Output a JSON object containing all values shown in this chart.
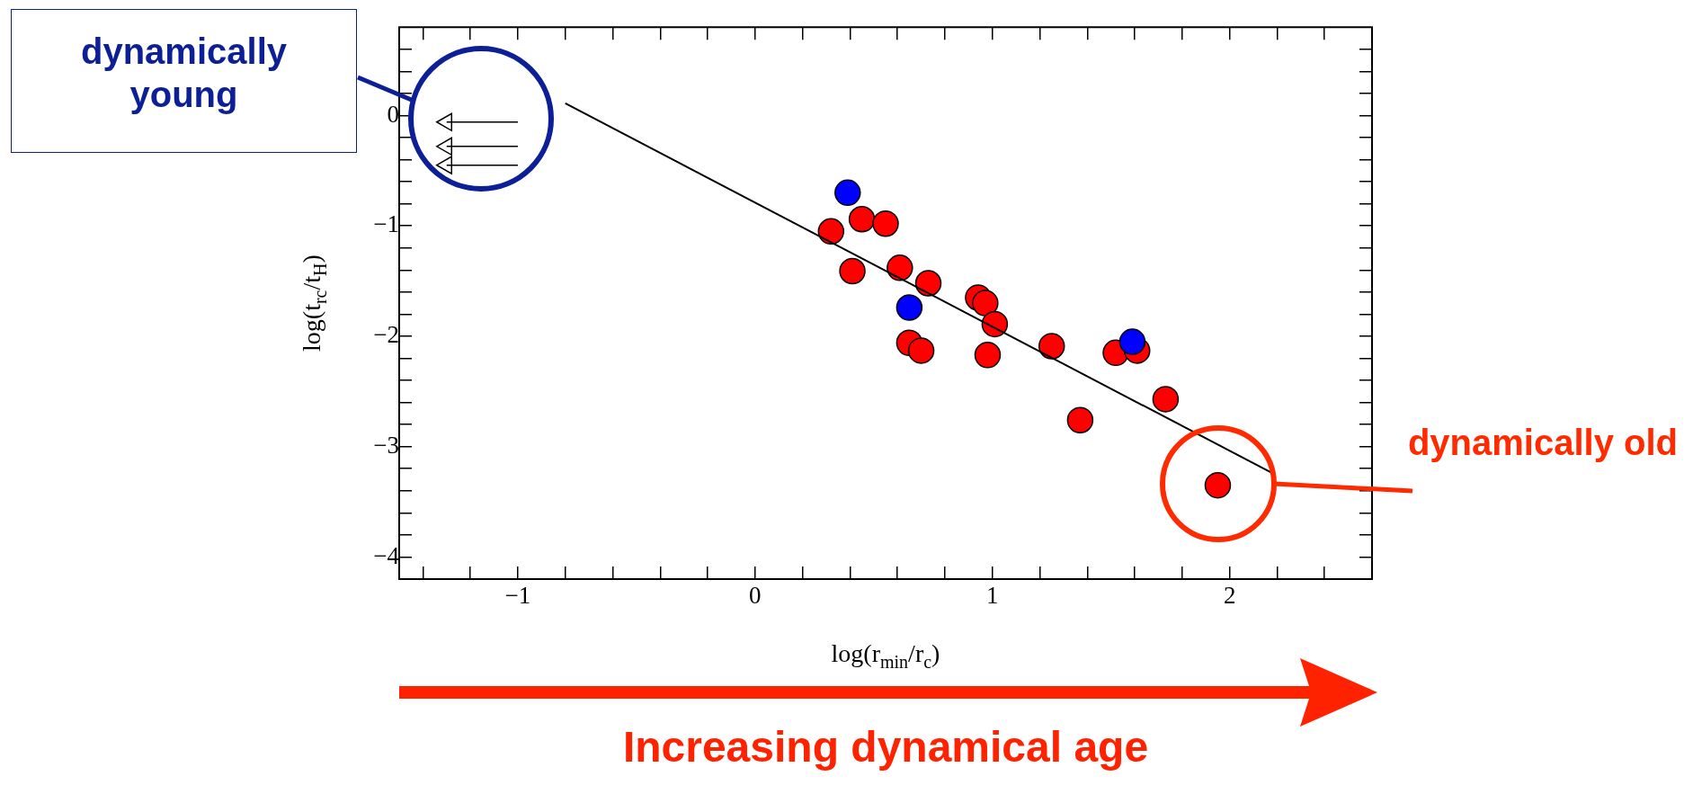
{
  "chart_data": {
    "type": "scatter",
    "xlabel": "log(r$_{min}$/r$_{c}$)",
    "ylabel": "log(t$_{rc}$/t$_{H}$)",
    "xlim": [
      -1.5,
      2.6
    ],
    "ylim": [
      -4.2,
      0.8
    ],
    "xticks": [
      {
        "value": -1.4,
        "label": null
      },
      {
        "value": -1.2,
        "label": null
      },
      {
        "value": -1,
        "label": "−1"
      },
      {
        "value": -0.8,
        "label": null
      },
      {
        "value": -0.6,
        "label": null
      },
      {
        "value": -0.4,
        "label": null
      },
      {
        "value": -0.2,
        "label": null
      },
      0,
      {
        "value": 0.2,
        "label": null
      },
      {
        "value": 0.4,
        "label": null
      },
      {
        "value": 0.6,
        "label": null
      },
      {
        "value": 0.8,
        "label": null
      },
      1,
      {
        "value": 1.2,
        "label": null
      },
      {
        "value": 1.4,
        "label": null
      },
      {
        "value": 1.6,
        "label": null
      },
      {
        "value": 1.8,
        "label": null
      },
      2,
      {
        "value": 2.2,
        "label": null
      },
      {
        "value": 2.4,
        "label": null
      }
    ],
    "yticks": [
      {
        "value": -4,
        "label": "−4"
      },
      {
        "value": -3.8,
        "label": null
      },
      {
        "value": -3.6,
        "label": null
      },
      {
        "value": -3.4,
        "label": null
      },
      {
        "value": -3.2,
        "label": null
      },
      {
        "value": -3,
        "label": "−3"
      },
      {
        "value": -2.8,
        "label": null
      },
      {
        "value": -2.6,
        "label": null
      },
      {
        "value": -2.4,
        "label": null
      },
      {
        "value": -2.2,
        "label": null
      },
      {
        "value": -2,
        "label": "−2"
      },
      {
        "value": -1.8,
        "label": null
      },
      {
        "value": -1.6,
        "label": null
      },
      {
        "value": -1.4,
        "label": null
      },
      {
        "value": -1.2,
        "label": null
      },
      {
        "value": -1,
        "label": "−1"
      },
      {
        "value": -0.8,
        "label": null
      },
      {
        "value": -0.6,
        "label": null
      },
      {
        "value": -0.4,
        "label": null
      },
      {
        "value": -0.2,
        "label": null
      },
      0,
      {
        "value": 0.2,
        "label": null
      },
      {
        "value": 0.4,
        "label": null
      },
      {
        "value": 0.6,
        "label": null
      }
    ],
    "grid": false,
    "legend": false,
    "marker": "circle",
    "series": [
      {
        "color": "#ff0000",
        "x": [
          0.32,
          0.45,
          0.55,
          0.41,
          0.61,
          0.73,
          0.94,
          0.97,
          1.01,
          0.65,
          0.7,
          0.98,
          1.25,
          1.52,
          1.61,
          1.73,
          1.37,
          1.95
        ],
        "values": [
          -1.05,
          -0.94,
          -0.98,
          -1.41,
          -1.38,
          -1.52,
          -1.65,
          -1.7,
          -1.89,
          -2.06,
          -2.13,
          -2.17,
          -2.09,
          -2.15,
          -2.13,
          -2.57,
          -2.76,
          -3.35
        ]
      },
      {
        "color": "#0000ff",
        "x": [
          0.39,
          0.65,
          1.59
        ],
        "values": [
          -0.7,
          -1.74,
          -2.05
        ]
      },
      {
        "color": "#000000",
        "marker": "triangle",
        "x": [
          -1.3,
          -1.3,
          -1.3
        ],
        "values": [
          -0.06,
          -0.28,
          -0.45
        ],
        "xerrors": [
          [
            -1.3,
            -1.0
          ],
          [
            -1.3,
            -1.0
          ],
          [
            -1.3,
            -1.0
          ]
        ]
      },
      {
        "type": "line",
        "color": "#000000",
        "marker": "none",
        "line_style": "solid",
        "x": [
          -0.8,
          2.18
        ],
        "values": [
          0.11,
          -3.24
        ]
      }
    ],
    "annotations": [
      "dynamically young",
      "dynamically old",
      "Increasing dynamical age"
    ]
  }
}
